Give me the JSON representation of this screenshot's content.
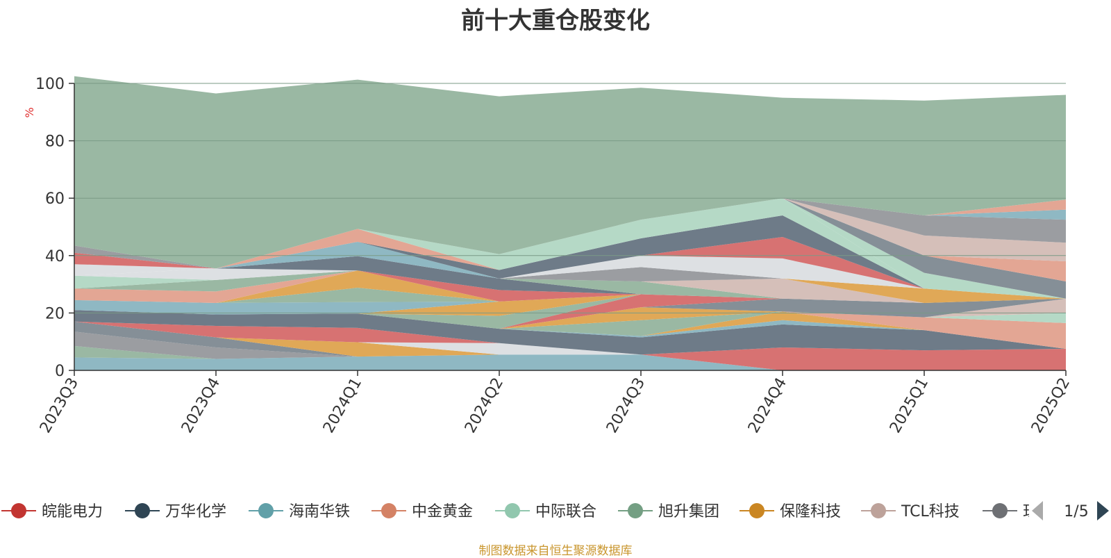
{
  "chart_data": {
    "type": "area",
    "stacked": true,
    "title": "前十大重仓股变化",
    "ylabel": "%",
    "ylim": [
      0,
      100
    ],
    "yticks": [
      0,
      20,
      40,
      60,
      80,
      100
    ],
    "grid": true,
    "x": [
      "2023Q3",
      "2023Q4",
      "2024Q1",
      "2024Q2",
      "2024Q3",
      "2024Q4",
      "2025Q1",
      "2025Q2"
    ],
    "legend": {
      "position": "bottom",
      "page": "1/5",
      "items": [
        "皖能电力",
        "万华化学",
        "海南华铁",
        "中金黄金",
        "中际联合",
        "旭升集团",
        "保隆科技",
        "TCL科技",
        "珏"
      ]
    },
    "series": [
      {
        "name": "海南华铁",
        "color": "#8fb8c3",
        "values": [
          4.5,
          4.0,
          4.8,
          5.5,
          5.5,
          0,
          0,
          0
        ]
      },
      {
        "color": "#9ab8a3",
        "values": [
          4.0,
          0,
          0,
          0,
          0,
          0,
          0,
          0
        ]
      },
      {
        "color": "#9b9da1",
        "values": [
          5.0,
          4.0,
          0,
          0,
          0,
          0,
          0,
          0
        ]
      },
      {
        "color": "#858f97",
        "values": [
          3.5,
          3.5,
          0,
          0,
          0,
          0,
          0,
          0
        ]
      },
      {
        "color": "#d77272",
        "values": [
          0,
          0,
          0,
          0,
          0,
          8.0,
          7.0,
          7.5
        ]
      },
      {
        "color": "#e0a857",
        "values": [
          0,
          0,
          5.0,
          0,
          0,
          0,
          0,
          0
        ]
      },
      {
        "color": "#dde0e3",
        "values": [
          0,
          0,
          0,
          4.0,
          0,
          0,
          0,
          0
        ]
      },
      {
        "color": "#d77272",
        "values": [
          0,
          4.0,
          5.0,
          0,
          0,
          0,
          0,
          0
        ]
      },
      {
        "color": "#6e7b88",
        "values": [
          4.0,
          4.0,
          5.0,
          5.0,
          6.0,
          8.0,
          7.0,
          0
        ]
      },
      {
        "color": "#8fb8c3",
        "values": [
          0,
          0,
          0,
          0,
          0.5,
          1.5,
          0,
          0
        ]
      },
      {
        "color": "#e0a857",
        "values": [
          0,
          0,
          0,
          0,
          0,
          3.0,
          0,
          0
        ]
      },
      {
        "color": "#e3a694",
        "values": [
          0,
          0,
          0,
          0,
          0,
          0,
          4.5,
          9.0
        ]
      },
      {
        "color": "#b5d9c6",
        "values": [
          0,
          0,
          0,
          0,
          0,
          0,
          0,
          3.5
        ]
      },
      {
        "color": "#d5bfb9",
        "values": [
          0,
          0,
          0,
          0,
          0,
          0,
          0,
          5.0
        ]
      },
      {
        "color": "#9ab8a3",
        "values": [
          0,
          0,
          0,
          0,
          5.5,
          0,
          0,
          0
        ]
      },
      {
        "color": "#e0a857",
        "values": [
          0,
          0,
          0,
          0,
          4.5,
          0,
          0,
          0
        ]
      },
      {
        "color": "#858f97",
        "values": [
          0,
          0,
          0,
          0,
          0,
          4.5,
          5.0,
          0
        ]
      },
      {
        "color": "#d77272",
        "values": [
          0,
          0,
          0,
          0,
          4.5,
          0,
          0,
          0
        ]
      },
      {
        "color": "#9ab8a3",
        "values": [
          0,
          0,
          0,
          4.5,
          0,
          0,
          0,
          0
        ]
      },
      {
        "color": "#e0a857",
        "values": [
          0,
          0,
          0,
          5.0,
          0,
          0,
          0,
          0
        ]
      },
      {
        "color": "#8fb8c3",
        "values": [
          3.5,
          4.0,
          4.0,
          0,
          0,
          0,
          0,
          0
        ]
      },
      {
        "color": "#9ab8a3",
        "values": [
          0,
          0,
          5.0,
          0,
          0,
          0,
          0,
          0
        ]
      },
      {
        "color": "#e0a857",
        "values": [
          0,
          0,
          6.0,
          0,
          0,
          0,
          0,
          0
        ]
      },
      {
        "color": "#e3a694",
        "values": [
          4.0,
          4.0,
          0,
          0,
          0,
          0,
          0,
          0
        ]
      },
      {
        "color": "#9ab8a3",
        "values": [
          0,
          4.0,
          0,
          0,
          0,
          0,
          0,
          0
        ]
      },
      {
        "color": "#b5d9c6",
        "values": [
          4.5,
          0,
          0,
          0,
          0,
          0,
          0,
          0
        ]
      },
      {
        "color": "#dde0e3",
        "values": [
          0,
          4.0,
          0,
          0,
          0,
          0,
          0,
          0
        ]
      },
      {
        "color": "#d77272",
        "values": [
          0,
          0,
          0,
          4.0,
          0,
          0,
          0,
          0
        ]
      },
      {
        "color": "#6e7b88",
        "values": [
          0,
          0,
          5.0,
          4.0,
          0,
          0,
          0,
          0
        ]
      },
      {
        "color": "#8fb8c3",
        "values": [
          0,
          0,
          5.0,
          0,
          0,
          0,
          0,
          0
        ]
      },
      {
        "color": "#9ab8a3",
        "values": [
          0,
          0,
          0,
          0,
          4.5,
          0,
          0,
          0
        ]
      },
      {
        "color": "#d5bfb9",
        "values": [
          0,
          0,
          0,
          0,
          0,
          7.0,
          0,
          0
        ]
      },
      {
        "color": "#e0a857",
        "values": [
          0,
          0,
          0,
          0,
          0,
          0,
          5.0,
          0
        ]
      },
      {
        "color": "#9b9da1",
        "values": [
          0,
          0,
          0,
          0,
          5.0,
          0,
          0,
          0
        ]
      },
      {
        "color": "#dde0e3",
        "values": [
          4.0,
          0,
          0,
          0,
          4.0,
          7.0,
          0,
          0
        ]
      },
      {
        "color": "#d77272",
        "values": [
          4.0,
          0,
          0,
          0,
          0,
          7.5,
          0,
          0
        ]
      },
      {
        "color": "#6e7b88",
        "values": [
          0,
          0,
          0,
          3.0,
          6.0,
          7.5,
          0,
          0
        ]
      },
      {
        "color": "#e3a694",
        "values": [
          0,
          0,
          4.5,
          0,
          0,
          0,
          0,
          0
        ]
      },
      {
        "color": "#b5d9c6",
        "values": [
          0,
          0,
          0,
          5.5,
          6.5,
          6.0,
          0,
          0
        ]
      },
      {
        "color": "#9b9da1",
        "values": [
          2.5,
          0,
          0,
          0,
          0,
          0,
          0,
          0
        ]
      },
      {
        "color": "#b5d9c6",
        "values": [
          0,
          0,
          0,
          0,
          0,
          0,
          5.5,
          0
        ]
      },
      {
        "color": "#858f97",
        "values": [
          0,
          0,
          0,
          0,
          0,
          0,
          6.0,
          6.0
        ]
      },
      {
        "color": "#e3a694",
        "values": [
          0,
          0,
          0,
          0,
          0,
          0,
          0,
          7.0
        ]
      },
      {
        "color": "#d5bfb9",
        "values": [
          0,
          0,
          0,
          0,
          0,
          0,
          7.0,
          6.5
        ]
      },
      {
        "color": "#9b9da1",
        "values": [
          0,
          0,
          0,
          0,
          0,
          0,
          7.0,
          8.0
        ]
      },
      {
        "color": "#8fb8c3",
        "values": [
          0,
          0,
          0,
          0,
          0,
          0,
          0,
          3.5
        ]
      },
      {
        "color": "#e3a694",
        "values": [
          0,
          0,
          0,
          0,
          0,
          0,
          0,
          3.5
        ]
      },
      {
        "color": "#9ab8a3",
        "values": [
          59.0,
          61.0,
          52.0,
          55.0,
          46.0,
          35.0,
          40.0,
          36.5
        ]
      }
    ]
  },
  "source_note": "制图数据来自恒生聚源数据库"
}
